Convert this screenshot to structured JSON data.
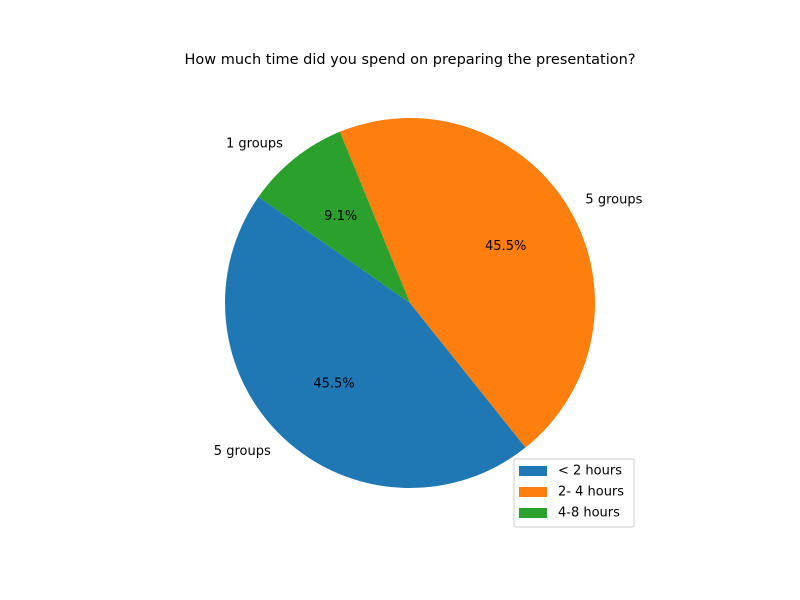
{
  "chart_data": {
    "type": "pie",
    "title": "How much time did you spend on preparing the presentation?",
    "categories": [
      "< 2 hours",
      "2- 4 hours",
      "4-8 hours"
    ],
    "values": [
      5,
      5,
      1
    ],
    "slice_labels": [
      "5 groups",
      "5 groups",
      "1 groups"
    ],
    "percent_labels": [
      "45.5%",
      "45.5%",
      "9.1%"
    ],
    "colors": [
      "#1f77b4",
      "#ff7f0e",
      "#2ca02c"
    ],
    "start_angle_deg": 145,
    "direction": "counterclockwise",
    "legend": {
      "placement": "lower-right",
      "entries": [
        "< 2 hours",
        "2- 4 hours",
        "4-8 hours"
      ]
    }
  }
}
